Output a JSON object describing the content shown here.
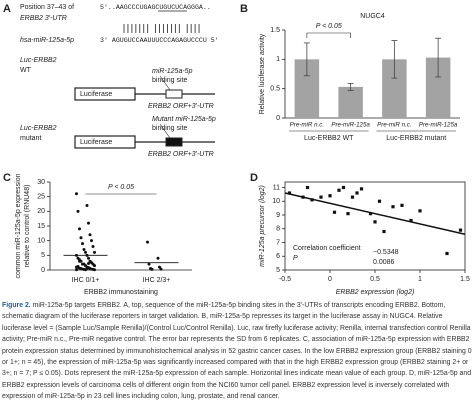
{
  "panel_a": {
    "label": "A",
    "position_label": "Position 37–43 of",
    "utr_label": "ERBB2 3′-UTR",
    "target_seq": "5′..AAGCCCUGAGCUGUCUCAGGGA..",
    "mirna_label": "hsa-miR-125a-5p",
    "mirna_seq": "3′ AGUGUCCAAUUUCCCAGAGUCCCU 5′",
    "constructs": [
      {
        "name": "Luc-ERBB2",
        "state": "WT",
        "box": "Luciferase",
        "site": [
          "miR-125a-5p",
          "binding site"
        ],
        "orf": "ERBB2 ORF+3′-UTR"
      },
      {
        "name": "Luc-ERBB2",
        "state": "mutant",
        "box": "Luciferase",
        "site": [
          "Mutant miR-125a-5p",
          "binding site"
        ],
        "orf": "ERBB2 ORF+3′-UTR"
      }
    ]
  },
  "chart_data": [
    {
      "panel": "B",
      "type": "bar",
      "title": "NUGC4",
      "y_label": "Relative luciferase activity",
      "categories": [
        "Pre-miR n.c.",
        "Pre-miR-125a",
        "Pre-miR n.c.",
        "Pre-miR-125a"
      ],
      "groups": [
        "Luc-ERBB2 WT",
        "Luc-ERBB2 mutant"
      ],
      "values": [
        1.0,
        0.53,
        1.0,
        1.03
      ],
      "errors": [
        0.28,
        0.06,
        0.32,
        0.33
      ],
      "color": "#a3a3a3",
      "ylim": [
        0,
        1.5
      ],
      "yticks": [
        0,
        0.5,
        1,
        1.5
      ],
      "annotation": "P < 0.05"
    },
    {
      "panel": "C",
      "type": "dot",
      "y_label": [
        "common miR-125a-5p expression",
        "relative to control (RNU48)"
      ],
      "x_label": "ERBB2 immunostaining",
      "categories": [
        "IHC 0/1+",
        "IHC 2/3+"
      ],
      "values": [
        [
          26,
          22,
          20,
          16,
          14,
          12,
          11,
          10,
          9,
          8,
          7,
          6,
          6,
          5,
          5,
          4,
          4,
          3,
          3,
          3,
          2.5,
          2,
          2,
          2,
          1.5,
          1.5,
          1,
          1,
          1,
          0.8,
          0.6,
          0.5,
          0.5,
          0.3,
          0.3,
          0.2,
          0.2,
          0.1,
          0.1,
          0.1,
          0.5,
          1.2,
          2.2,
          3.5,
          0.4
        ],
        [
          9.5,
          4,
          2,
          1,
          0.5,
          0.3,
          0.2
        ]
      ],
      "means": [
        5.0,
        2.5
      ],
      "ylim": [
        0,
        30
      ],
      "yticks": [
        0,
        5,
        10,
        15,
        20,
        25,
        30
      ],
      "annotation": "P < 0.05"
    },
    {
      "panel": "D",
      "type": "scatter",
      "x_label": "ERBB2 expression (log2)",
      "y_label": "miR-125a precursor (log2)",
      "x": [
        -0.45,
        -0.3,
        -0.25,
        -0.2,
        -0.1,
        0,
        0.05,
        0.1,
        0.15,
        0.2,
        0.25,
        0.3,
        0.35,
        0.45,
        0.5,
        0.55,
        0.6,
        0.7,
        0.8,
        0.9,
        1.0,
        1.3,
        1.45
      ],
      "y": [
        10.6,
        10.3,
        11.0,
        10.1,
        10.3,
        10.4,
        9.2,
        10.8,
        11.0,
        9.1,
        10.3,
        10.6,
        10.9,
        9.1,
        8.5,
        10.0,
        7.8,
        9.6,
        9.7,
        8.6,
        9.3,
        6.2,
        7.9
      ],
      "fit": {
        "x": [
          -0.5,
          1.5
        ],
        "y": [
          10.6,
          7.6
        ]
      },
      "xlim": [
        -0.5,
        1.5
      ],
      "xticks": [
        -0.5,
        0,
        0.5,
        1,
        1.5
      ],
      "ylim": [
        5,
        11.4
      ],
      "yticks": [
        5,
        6,
        7,
        8,
        9,
        10,
        11
      ],
      "stats": {
        "labels": [
          "Correlation coefficient",
          "P"
        ],
        "values": [
          "−0.5348",
          "0.0086"
        ]
      }
    }
  ],
  "caption": {
    "lead": "Figure 2.",
    "text": "miR-125a-5p targets ERBB2. A, top, sequence of the miR-125a-5p binding sites in the 3′-UTRs of transcripts encoding ERBB2. Bottom, schematic diagram of the luciferase reporters in target validation. B, miR-125a-5p represses its target in the luciferase assay in NUGC4. Relative luciferase level = (Sample Luc/Sample Renilla)/(Control Luc/Control Renilla). Luc, raw firefly luciferase activity; Renilla, internal transfection control Renilla activity; Pre-miR n.c., Pre-miR negative control. The error bar represents the SD from 6 replicates. C, association of miR-125a-5p expression with ERBB2 protein expression status determined by immunohistochemical analysis in 52 gastric cancer cases. In the low ERBB2 expression group (ERBB2 staining 0 or 1+; n = 45), the expression of miR-125a-5p was significantly increased compared with that in the high ERBB2 expression group (ERBB2 staining 2+ or 3+; n = 7; P ≤ 0.05). Dots represent the miR-125a-5p expression of each sample. Horizontal lines indicate mean value of each group. D, miR-125a-5p and ERBB2 expression levels of carcinoma cells of different origin from the NCI60 tumor cell panel. ERBB2 expression level is inversely correlated with expression of miR-125a-5p in 23 cell lines including colon, lung, prostate, and renal cancer."
  }
}
